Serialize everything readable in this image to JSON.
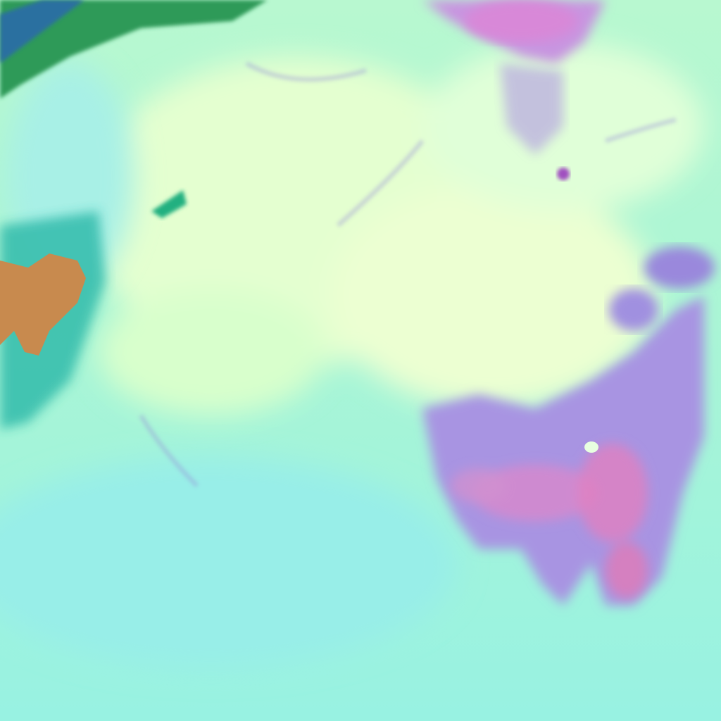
{
  "image": {
    "kind": "false-color satellite imagery",
    "colors": {
      "background": "#a2f5d8",
      "cloud_bright": "#e8ffd0",
      "cloud_cyan": "#9ff0e6",
      "land_purple": "#a890e0",
      "land_red": "#d880c8",
      "magenta_top": "#c490e0",
      "orange_land": "#c98a50",
      "green_land": "#2aa060",
      "teal_edge": "#30c0b0"
    }
  }
}
